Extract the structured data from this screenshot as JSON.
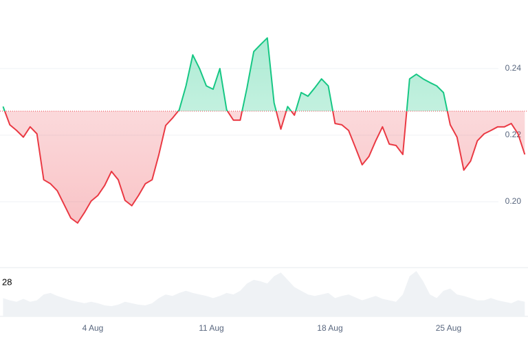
{
  "chart_data": {
    "type": "line",
    "x": [
      -1.3,
      -0.9,
      -0.5,
      -0.1,
      0.3,
      0.7,
      1.1,
      1.5,
      1.9,
      2.3,
      2.7,
      3.1,
      3.5,
      3.9,
      4.3,
      4.7,
      5.1,
      5.5,
      5.9,
      6.3,
      6.7,
      7.1,
      7.5,
      7.9,
      8.3,
      8.7,
      9.1,
      9.5,
      9.9,
      10.3,
      10.7,
      11.1,
      11.5,
      11.9,
      12.3,
      12.7,
      13.1,
      13.5,
      13.9,
      14.3,
      14.7,
      15.1,
      15.5,
      15.9,
      16.3,
      16.7,
      17.1,
      17.5,
      17.9,
      18.3,
      18.7,
      19.1,
      19.5,
      19.9,
      20.3,
      20.7,
      21.1,
      21.5,
      21.9,
      22.3,
      22.7,
      23.1,
      23.5,
      23.9,
      24.3,
      24.7,
      25.1,
      25.5,
      25.9,
      26.3,
      26.7,
      27.1,
      27.5,
      27.9,
      28.3,
      28.7,
      29.1,
      29.5
    ],
    "series": [
      {
        "values": [
          0.2286,
          0.2231,
          0.2214,
          0.2194,
          0.2225,
          0.2204,
          0.2066,
          0.2054,
          0.2033,
          0.1992,
          0.1951,
          0.1936,
          0.1967,
          0.2002,
          0.2019,
          0.2049,
          0.2091,
          0.2066,
          0.2004,
          0.1988,
          0.2019,
          0.2054,
          0.2066,
          0.2142,
          0.2229,
          0.2251,
          0.2276,
          0.2348,
          0.2441,
          0.24,
          0.2348,
          0.2338,
          0.24,
          0.2276,
          0.2245,
          0.2245,
          0.2342,
          0.2451,
          0.2472,
          0.2492,
          0.2297,
          0.2218,
          0.2286,
          0.226,
          0.2328,
          0.2317,
          0.2342,
          0.2369,
          0.2348,
          0.2235,
          0.2231,
          0.2214,
          0.2163,
          0.2111,
          0.2136,
          0.2183,
          0.2225,
          0.2173,
          0.2169,
          0.2142,
          0.2369,
          0.2383,
          0.2369,
          0.2358,
          0.2348,
          0.2328,
          0.2231,
          0.2194,
          0.2095,
          0.2122,
          0.2183,
          0.2204,
          0.2214,
          0.2225,
          0.2225,
          0.2235,
          0.2204,
          0.2142
        ]
      }
    ],
    "volume": [
      25,
      22,
      20,
      24,
      20,
      22,
      30,
      32,
      28,
      25,
      22,
      20,
      18,
      20,
      18,
      15,
      14,
      16,
      20,
      18,
      16,
      15,
      18,
      25,
      30,
      28,
      32,
      35,
      32,
      30,
      28,
      25,
      28,
      32,
      30,
      35,
      45,
      50,
      48,
      45,
      55,
      60,
      50,
      40,
      35,
      30,
      28,
      30,
      32,
      25,
      28,
      30,
      26,
      22,
      25,
      28,
      24,
      22,
      20,
      30,
      55,
      62,
      48,
      30,
      25,
      35,
      38,
      30,
      28,
      25,
      22,
      22,
      25,
      22,
      20,
      18,
      22,
      20
    ],
    "volume_label": "28",
    "baseline": 0.2272,
    "up_color": "#16c784",
    "down_color": "#ea3943",
    "volume_color": "#eff2f5",
    "xlim": [
      -1.48,
      29.69
    ],
    "ylim": [
      0.1802,
      0.2606
    ],
    "xticks": [
      {
        "value": 4,
        "label": "4 Aug"
      },
      {
        "value": 11,
        "label": "11 Aug"
      },
      {
        "value": 18,
        "label": "18 Aug"
      },
      {
        "value": 25,
        "label": "25 Aug"
      }
    ],
    "yticks": [
      {
        "value": 0.2,
        "label": "0.20"
      },
      {
        "value": 0.22,
        "label": "0.22"
      },
      {
        "value": 0.24,
        "label": "0.24"
      }
    ],
    "grid": true
  }
}
